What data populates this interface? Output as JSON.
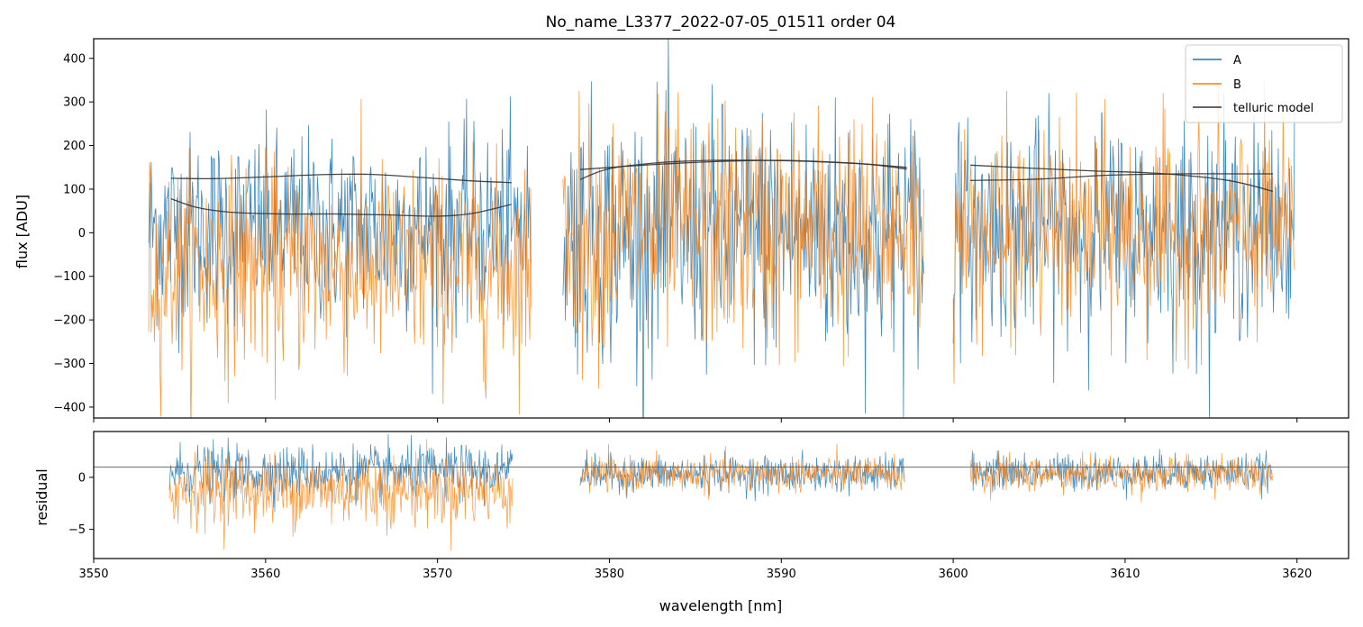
{
  "chart_data": {
    "title": "No_name_L3377_2022-07-05_01511  order 04",
    "xlabel": "wavelength [nm]",
    "xlim": [
      3550,
      3623
    ],
    "xticks": [
      3550,
      3560,
      3570,
      3580,
      3590,
      3600,
      3610,
      3620
    ],
    "colors": {
      "A": "#1f77b4",
      "B": "#ff7f0e",
      "model": "#333333"
    },
    "panels": [
      {
        "name": "flux",
        "type": "line",
        "ylabel": "flux [ADU]",
        "ylim": [
          -425,
          445
        ],
        "yticks": [
          -400,
          -300,
          -200,
          -100,
          0,
          100,
          200,
          300,
          400
        ],
        "legend": {
          "position": "top-right",
          "entries": [
            "A",
            "B",
            "telluric model"
          ]
        },
        "segments": [
          {
            "x_range": [
              3553.2,
              3575.5
            ],
            "A_center": 10,
            "A_spread": 240,
            "B_center": -80,
            "B_spread": 260
          },
          {
            "x_range": [
              3577.3,
              3598.3
            ],
            "A_center": 0,
            "A_spread": 320,
            "B_center": 0,
            "B_spread": 300
          },
          {
            "x_range": [
              3600.0,
              3619.9
            ],
            "A_center": 10,
            "A_spread": 260,
            "B_center": 0,
            "B_spread": 260
          }
        ],
        "telluric_model": [
          {
            "x": [
              3554.5,
              3557,
              3560,
              3563,
              3566,
              3569,
              3572,
              3574.3
            ],
            "y": [
              125,
              124,
              128,
              133,
              134,
              127,
              119,
              115
            ]
          },
          {
            "x": [
              3554.5,
              3556,
              3558,
              3561,
              3564,
              3567,
              3570,
              3572,
              3574.3
            ],
            "y": [
              78,
              58,
              47,
              43,
              43,
              41,
              38,
              44,
              65
            ]
          },
          {
            "x": [
              3578.3,
              3580,
              3583,
              3586,
              3589,
              3592,
              3595,
              3597.3
            ],
            "y": [
              122,
              147,
              161,
              166,
              166,
              163,
              157,
              146
            ]
          },
          {
            "x": [
              3578.3,
              3582,
              3586,
              3590,
              3594,
              3597.3
            ],
            "y": [
              145,
              155,
              163,
              166,
              160,
              150
            ]
          },
          {
            "x": [
              3601.0,
              3604,
              3608,
              3612,
              3616,
              3618.6
            ],
            "y": [
              155,
              149,
              142,
              136,
              120,
              95
            ]
          },
          {
            "x": [
              3601.0,
              3605,
              3609,
              3613,
              3617,
              3618.6
            ],
            "y": [
              120,
              123,
              132,
              135,
              135,
              135
            ]
          }
        ]
      },
      {
        "name": "residual",
        "type": "line",
        "ylabel": "residual",
        "ylim": [
          -7.8,
          4.4
        ],
        "yticks": [
          -5,
          0
        ],
        "ytick_labels": [
          "−5",
          "0"
        ],
        "reference_line_y": 1.0,
        "segments": [
          {
            "x_range": [
              3554.4,
              3574.4
            ],
            "A_center": 0.5,
            "A_spread": 2.8,
            "B_center": -1.2,
            "B_spread": 3.8
          },
          {
            "x_range": [
              3578.3,
              3597.2
            ],
            "A_center": 0.3,
            "A_spread": 1.9,
            "B_center": 0.3,
            "B_spread": 1.8
          },
          {
            "x_range": [
              3601.0,
              3618.6
            ],
            "A_center": 0.5,
            "A_spread": 1.9,
            "B_center": 0.3,
            "B_spread": 1.9
          }
        ]
      }
    ]
  }
}
